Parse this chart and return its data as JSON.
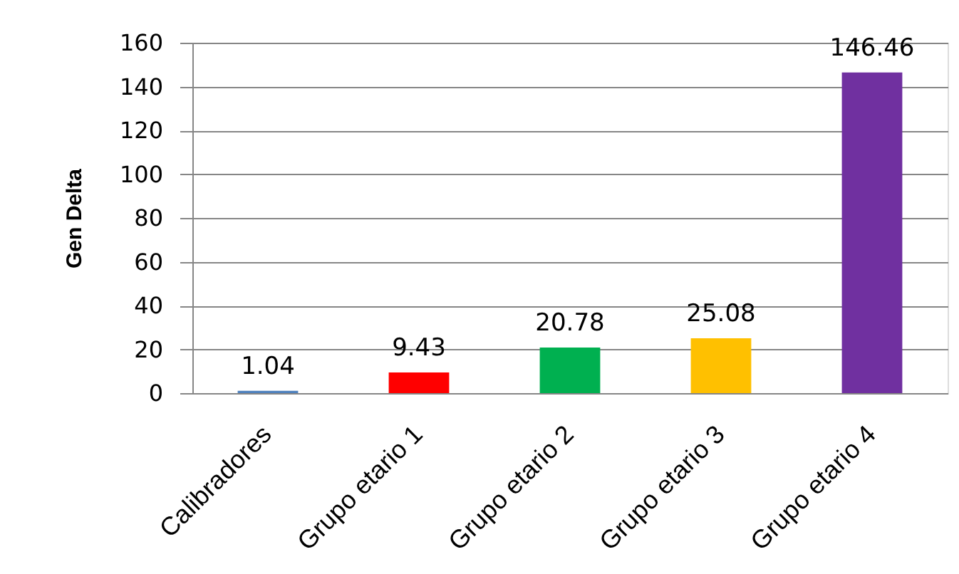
{
  "chart_data": {
    "type": "bar",
    "ylabel": "Gen Delta",
    "categories": [
      "Calibradores",
      "Grupo etario 1",
      "Grupo etario 2",
      "Grupo etario 3",
      "Grupo etario 4"
    ],
    "values": [
      1.04,
      9.43,
      20.78,
      25.08,
      146.46
    ],
    "colors": [
      "#4f81bd",
      "#ff0000",
      "#00b050",
      "#ffc000",
      "#7030a0"
    ],
    "ylim": [
      0,
      160
    ],
    "yticks": [
      0,
      20,
      40,
      60,
      80,
      100,
      120,
      140,
      160
    ],
    "grid": "y",
    "data_labels": true
  }
}
